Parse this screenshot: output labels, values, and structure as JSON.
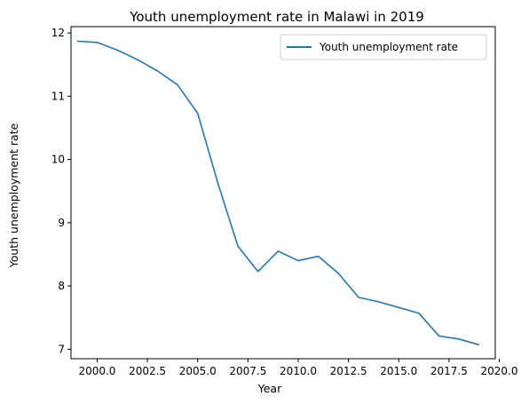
{
  "chart_data": {
    "type": "line",
    "title": "Youth unemployment rate in Malawi in 2019",
    "xlabel": "Year",
    "ylabel": "Youth unemployment rate",
    "xlim": [
      1998.7,
      2019.8
    ],
    "ylim": [
      6.85,
      12.1
    ],
    "xticks": [
      2000.0,
      2002.5,
      2005.0,
      2007.5,
      2010.0,
      2012.5,
      2015.0,
      2017.5,
      2020.0
    ],
    "xtick_labels": [
      "2000.0",
      "2002.5",
      "2005.0",
      "2007.5",
      "2010.0",
      "2012.5",
      "2015.0",
      "2017.5",
      "2020.0"
    ],
    "yticks": [
      7,
      8,
      9,
      10,
      11,
      12
    ],
    "ytick_labels": [
      "7",
      "8",
      "9",
      "10",
      "11",
      "12"
    ],
    "legend_position": "top-right",
    "grid": false,
    "series": [
      {
        "name": "Youth unemployment rate",
        "color": "#1f77b4",
        "x": [
          1999,
          2000,
          2001,
          2002,
          2003,
          2004,
          2005,
          2006,
          2007,
          2008,
          2009,
          2010,
          2011,
          2012,
          2013,
          2014,
          2015,
          2016,
          2017,
          2018,
          2019
        ],
        "values": [
          11.87,
          11.85,
          11.73,
          11.58,
          11.4,
          11.18,
          10.73,
          9.63,
          8.63,
          8.23,
          8.55,
          8.4,
          8.47,
          8.2,
          7.82,
          7.75,
          7.66,
          7.57,
          7.21,
          7.16,
          7.07
        ]
      }
    ]
  }
}
